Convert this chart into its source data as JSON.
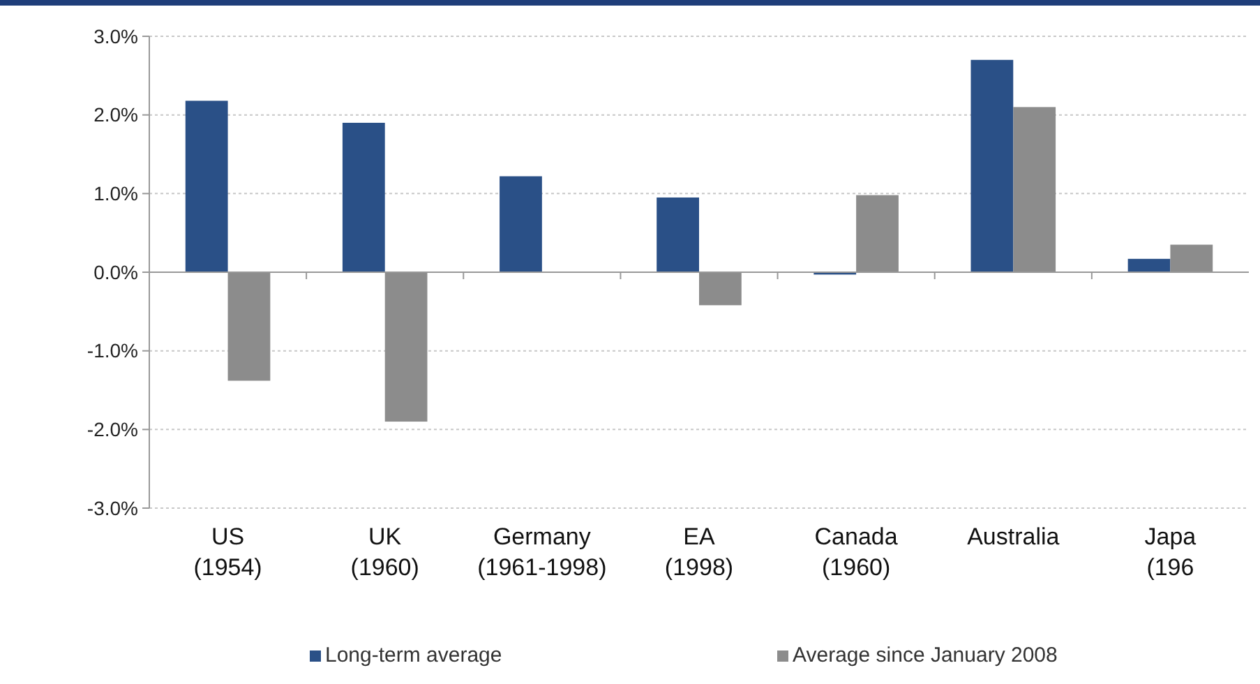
{
  "chart_data": {
    "type": "bar",
    "categories": [
      "US\n(1954)",
      "UK\n(1960)",
      "Germany\n(1961-1998)",
      "EA\n(1998)",
      "Canada\n(1960)",
      "Australia",
      "Japa\n(196"
    ],
    "series": [
      {
        "name": "Long-term average",
        "color": "#2a5087",
        "values": [
          2.18,
          1.9,
          1.22,
          0.95,
          -0.03,
          2.7,
          0.17
        ]
      },
      {
        "name": "Average since January 2008",
        "color": "#8c8c8c",
        "values": [
          -1.38,
          -1.9,
          null,
          -0.42,
          0.98,
          2.1,
          0.35
        ]
      }
    ],
    "ylim": [
      -3,
      3
    ],
    "yticks": [
      {
        "value": 3,
        "label": "3.0%"
      },
      {
        "value": 2,
        "label": "2.0%"
      },
      {
        "value": 1,
        "label": "1.0%"
      },
      {
        "value": 0,
        "label": "0.0%"
      },
      {
        "value": -1,
        "label": "-1.0%"
      },
      {
        "value": -2,
        "label": "-2.0%"
      },
      {
        "value": -3,
        "label": "-3.0%"
      }
    ],
    "grid": "y",
    "legend": "bottom"
  }
}
